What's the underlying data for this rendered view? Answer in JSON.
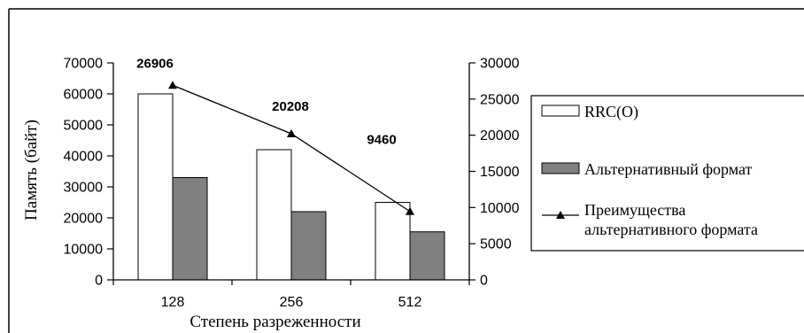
{
  "chart_data": {
    "type": "bar",
    "categories": [
      "128",
      "256",
      "512"
    ],
    "series": [
      {
        "name": "RRC(O)",
        "type": "bar",
        "axis": "left",
        "color": "#ffffff",
        "values": [
          60000,
          42000,
          25000
        ]
      },
      {
        "name": "Альтернативный формат",
        "type": "bar",
        "axis": "left",
        "color": "#808080",
        "values": [
          33000,
          22000,
          15500
        ]
      },
      {
        "name": "Преимущества альтернативного формата",
        "type": "line",
        "axis": "right",
        "color": "#000000",
        "values": [
          26906,
          20208,
          9460
        ],
        "data_labels": [
          "26906",
          "20208",
          "9460"
        ]
      }
    ],
    "xlabel": "Степень разреженности",
    "ylabel": "Память (байт)",
    "ylim": [
      0,
      70000
    ],
    "y2lim": [
      0,
      30000
    ],
    "yticks": [
      0,
      10000,
      20000,
      30000,
      40000,
      50000,
      60000,
      70000
    ],
    "y2ticks": [
      0,
      5000,
      10000,
      15000,
      20000,
      25000,
      30000
    ],
    "grid": false,
    "legend": "right"
  }
}
